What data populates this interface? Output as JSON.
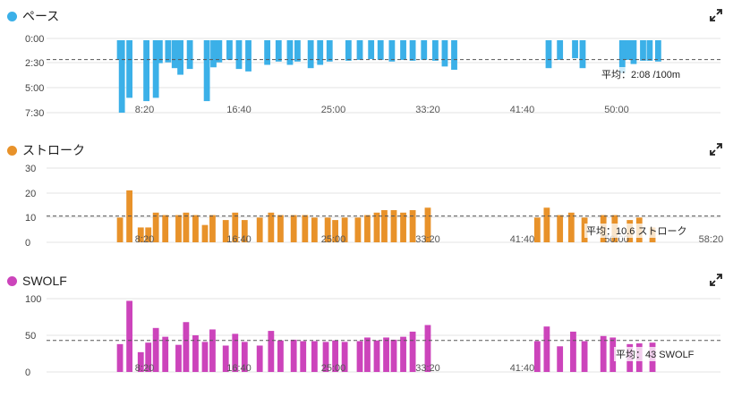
{
  "colors": {
    "pace": "#3bb0e8",
    "stroke": "#e8922a",
    "swolf": "#cc44bb",
    "grid": "#e3e3e3",
    "avgline": "#555555"
  },
  "x_tick_labels": [
    "8:20",
    "16:40",
    "25:00",
    "33:20",
    "41:40",
    "50:00",
    "58:20"
  ],
  "chart_data": [
    {
      "type": "bar",
      "title": "ペース",
      "y_ticks": [
        "0:00",
        "2:30",
        "5:00",
        "7:30"
      ],
      "ylim": [
        0,
        450
      ],
      "y_inverted": true,
      "x_ticks_shown": [
        "8:20",
        "16:40",
        "25:00",
        "33:20",
        "41:40",
        "50:00"
      ],
      "average_label": "平均：2:08 /100m",
      "average_value": 128,
      "bars": [
        [
          370,
          130
        ],
        [
          380,
          450
        ],
        [
          420,
          360
        ],
        [
          510,
          380
        ],
        [
          560,
          360
        ],
        [
          580,
          150
        ],
        [
          625,
          145
        ],
        [
          660,
          180
        ],
        [
          690,
          220
        ],
        [
          740,
          185
        ],
        [
          830,
          380
        ],
        [
          865,
          175
        ],
        [
          895,
          145
        ],
        [
          950,
          130
        ],
        [
          1000,
          185
        ],
        [
          1050,
          200
        ],
        [
          1150,
          160
        ],
        [
          1210,
          140
        ],
        [
          1270,
          160
        ],
        [
          1310,
          140
        ],
        [
          1380,
          180
        ],
        [
          1430,
          160
        ],
        [
          1480,
          140
        ],
        [
          1580,
          135
        ],
        [
          1640,
          130
        ],
        [
          1700,
          125
        ],
        [
          1750,
          130
        ],
        [
          1810,
          140
        ],
        [
          1870,
          130
        ],
        [
          1920,
          135
        ],
        [
          1980,
          130
        ],
        [
          2040,
          135
        ],
        [
          2090,
          170
        ],
        [
          2140,
          190
        ],
        [
          2640,
          180
        ],
        [
          2700,
          130
        ],
        [
          2780,
          120
        ],
        [
          2820,
          180
        ],
        [
          3030,
          210
        ],
        [
          3060,
          130
        ],
        [
          3090,
          155
        ],
        [
          3140,
          135
        ],
        [
          3175,
          135
        ],
        [
          3220,
          140
        ]
      ]
    },
    {
      "type": "bar",
      "title": "ストローク",
      "y_ticks": [
        "30",
        "20",
        "10",
        "0"
      ],
      "ylim": [
        0,
        30
      ],
      "x_ticks_shown": [
        "8:20",
        "16:40",
        "25:00",
        "33:20",
        "41:40",
        "50:00",
        "58:20"
      ],
      "average_label": "平均：10.6 ストローク",
      "average_value": 10.6,
      "bars": [
        [
          370,
          10
        ],
        [
          420,
          21
        ],
        [
          480,
          6
        ],
        [
          520,
          6
        ],
        [
          560,
          12
        ],
        [
          610,
          11
        ],
        [
          680,
          11
        ],
        [
          720,
          12
        ],
        [
          770,
          11
        ],
        [
          820,
          7
        ],
        [
          860,
          11
        ],
        [
          930,
          9
        ],
        [
          980,
          12
        ],
        [
          1030,
          9
        ],
        [
          1110,
          10
        ],
        [
          1170,
          12
        ],
        [
          1220,
          11
        ],
        [
          1290,
          11
        ],
        [
          1350,
          11
        ],
        [
          1400,
          10
        ],
        [
          1470,
          10
        ],
        [
          1510,
          9
        ],
        [
          1560,
          10
        ],
        [
          1630,
          10
        ],
        [
          1680,
          11
        ],
        [
          1730,
          12
        ],
        [
          1770,
          13
        ],
        [
          1820,
          13
        ],
        [
          1870,
          12
        ],
        [
          1920,
          13
        ],
        [
          2000,
          14
        ],
        [
          2580,
          10
        ],
        [
          2630,
          14
        ],
        [
          2700,
          11
        ],
        [
          2760,
          12
        ],
        [
          2830,
          10
        ],
        [
          2930,
          11
        ],
        [
          2990,
          11
        ],
        [
          3070,
          9
        ],
        [
          3120,
          10
        ],
        [
          3190,
          6
        ]
      ]
    },
    {
      "type": "bar",
      "title": "SWOLF",
      "y_ticks": [
        "100",
        "50",
        "0"
      ],
      "ylim": [
        0,
        100
      ],
      "x_ticks_shown": [
        "8:20",
        "16:40",
        "25:00",
        "33:20",
        "41:40"
      ],
      "average_label": "平均：43 SWOLF",
      "average_value": 43,
      "bars": [
        [
          370,
          38
        ],
        [
          420,
          97
        ],
        [
          480,
          27
        ],
        [
          520,
          40
        ],
        [
          560,
          60
        ],
        [
          610,
          48
        ],
        [
          680,
          37
        ],
        [
          720,
          68
        ],
        [
          770,
          50
        ],
        [
          820,
          41
        ],
        [
          860,
          58
        ],
        [
          930,
          36
        ],
        [
          980,
          52
        ],
        [
          1030,
          41
        ],
        [
          1110,
          36
        ],
        [
          1170,
          56
        ],
        [
          1220,
          43
        ],
        [
          1290,
          44
        ],
        [
          1340,
          42
        ],
        [
          1400,
          42
        ],
        [
          1460,
          41
        ],
        [
          1510,
          43
        ],
        [
          1560,
          41
        ],
        [
          1640,
          42
        ],
        [
          1680,
          47
        ],
        [
          1730,
          43
        ],
        [
          1780,
          47
        ],
        [
          1820,
          44
        ],
        [
          1870,
          48
        ],
        [
          1920,
          55
        ],
        [
          2000,
          64
        ],
        [
          2580,
          42
        ],
        [
          2630,
          62
        ],
        [
          2700,
          35
        ],
        [
          2770,
          55
        ],
        [
          2830,
          42
        ],
        [
          2930,
          49
        ],
        [
          2980,
          47
        ],
        [
          3070,
          38
        ],
        [
          3120,
          39
        ],
        [
          3190,
          40
        ]
      ]
    }
  ]
}
